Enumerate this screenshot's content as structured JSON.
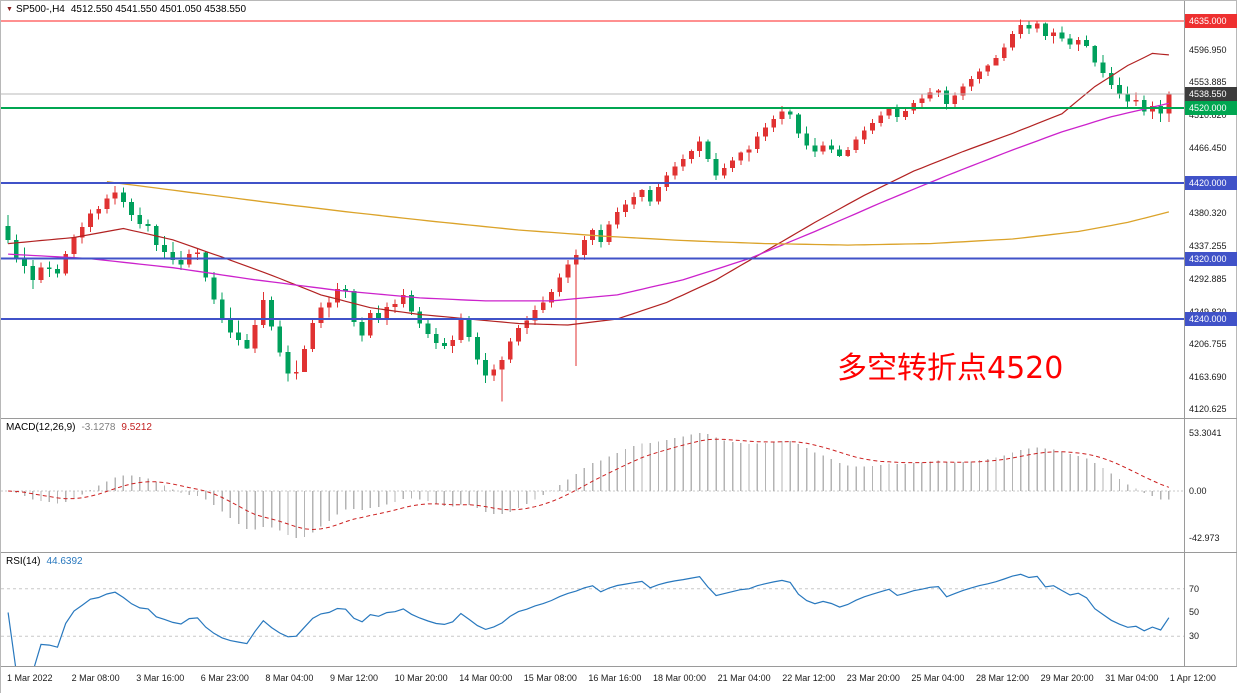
{
  "chart_data": {
    "type": "candlestick",
    "symbol": "SP500-,H4",
    "ohlc_text": "4512.550 4541.550 4501.050 4538.550",
    "ylim": [
      4108.8,
      4661.5
    ],
    "x_labels": [
      "1 Mar 2022",
      "2 Mar 08:00",
      "3 Mar 16:00",
      "6 Mar 23:00",
      "8 Mar 04:00",
      "9 Mar 12:00",
      "10 Mar 20:00",
      "14 Mar 00:00",
      "15 Mar 08:00",
      "16 Mar 16:00",
      "18 Mar 00:00",
      "21 Mar 04:00",
      "22 Mar 12:00",
      "23 Mar 20:00",
      "25 Mar 04:00",
      "28 Mar 12:00",
      "29 Mar 20:00",
      "31 Mar 04:00",
      "1 Apr 12:00"
    ],
    "colors": {
      "up": "#e03232",
      "down": "#00a05c",
      "hist": "#b4b4b4",
      "macd_signal": "#cc2020",
      "rsi": "#2878be"
    },
    "candles": [
      [
        4363,
        4378,
        4340,
        4345
      ],
      [
        4345,
        4352,
        4315,
        4320
      ],
      [
        4320,
        4335,
        4300,
        4310
      ],
      [
        4310,
        4318,
        4280,
        4292
      ],
      [
        4292,
        4315,
        4288,
        4308
      ],
      [
        4308,
        4316,
        4296,
        4306
      ],
      [
        4306,
        4312,
        4295,
        4300
      ],
      [
        4300,
        4330,
        4298,
        4326
      ],
      [
        4326,
        4352,
        4320,
        4348
      ],
      [
        4348,
        4368,
        4340,
        4362
      ],
      [
        4362,
        4385,
        4355,
        4380
      ],
      [
        4380,
        4390,
        4372,
        4386
      ],
      [
        4386,
        4405,
        4380,
        4400
      ],
      [
        4400,
        4416,
        4392,
        4408
      ],
      [
        4408,
        4414,
        4388,
        4395
      ],
      [
        4395,
        4400,
        4370,
        4378
      ],
      [
        4378,
        4388,
        4360,
        4366
      ],
      [
        4366,
        4372,
        4356,
        4363
      ],
      [
        4363,
        4365,
        4330,
        4338
      ],
      [
        4338,
        4350,
        4320,
        4329
      ],
      [
        4329,
        4342,
        4312,
        4318
      ],
      [
        4318,
        4330,
        4305,
        4312
      ],
      [
        4312,
        4332,
        4308,
        4326
      ],
      [
        4326,
        4334,
        4318,
        4328
      ],
      [
        4328,
        4330,
        4290,
        4295
      ],
      [
        4295,
        4302,
        4260,
        4266
      ],
      [
        4266,
        4275,
        4235,
        4240
      ],
      [
        4240,
        4255,
        4215,
        4222
      ],
      [
        4222,
        4238,
        4205,
        4212
      ],
      [
        4212,
        4220,
        4200,
        4201
      ],
      [
        4201,
        4240,
        4195,
        4232
      ],
      [
        4232,
        4276,
        4228,
        4265
      ],
      [
        4265,
        4270,
        4225,
        4230
      ],
      [
        4230,
        4238,
        4190,
        4196
      ],
      [
        4196,
        4205,
        4157,
        4168
      ],
      [
        4168,
        4185,
        4160,
        4170
      ],
      [
        4170,
        4205,
        4170,
        4200
      ],
      [
        4200,
        4240,
        4196,
        4235
      ],
      [
        4235,
        4262,
        4228,
        4255
      ],
      [
        4255,
        4270,
        4242,
        4262
      ],
      [
        4262,
        4288,
        4255,
        4280
      ],
      [
        4280,
        4285,
        4268,
        4277
      ],
      [
        4277,
        4280,
        4230,
        4236
      ],
      [
        4236,
        4242,
        4210,
        4218
      ],
      [
        4218,
        4252,
        4215,
        4248
      ],
      [
        4248,
        4258,
        4235,
        4240
      ],
      [
        4240,
        4262,
        4232,
        4256
      ],
      [
        4256,
        4266,
        4248,
        4260
      ],
      [
        4260,
        4280,
        4255,
        4272
      ],
      [
        4272,
        4278,
        4245,
        4250
      ],
      [
        4250,
        4256,
        4228,
        4234
      ],
      [
        4234,
        4240,
        4215,
        4220
      ],
      [
        4220,
        4228,
        4200,
        4208
      ],
      [
        4208,
        4215,
        4200,
        4204
      ],
      [
        4204,
        4218,
        4195,
        4212
      ],
      [
        4212,
        4247,
        4208,
        4240
      ],
      [
        4240,
        4244,
        4210,
        4216
      ],
      [
        4216,
        4222,
        4180,
        4186
      ],
      [
        4186,
        4195,
        4155,
        4165
      ],
      [
        4165,
        4180,
        4158,
        4173
      ],
      [
        4173,
        4190,
        4131,
        4186
      ],
      [
        4186,
        4215,
        4182,
        4210
      ],
      [
        4210,
        4232,
        4205,
        4228
      ],
      [
        4228,
        4244,
        4220,
        4238
      ],
      [
        4238,
        4258,
        4232,
        4252
      ],
      [
        4252,
        4270,
        4248,
        4262
      ],
      [
        4262,
        4280,
        4255,
        4276
      ],
      [
        4276,
        4300,
        4270,
        4295
      ],
      [
        4295,
        4318,
        4288,
        4312
      ],
      [
        4312,
        4332,
        4178,
        4325
      ],
      [
        4325,
        4350,
        4318,
        4345
      ],
      [
        4345,
        4360,
        4338,
        4358
      ],
      [
        4358,
        4365,
        4335,
        4342
      ],
      [
        4342,
        4370,
        4338,
        4365
      ],
      [
        4365,
        4388,
        4360,
        4382
      ],
      [
        4382,
        4398,
        4375,
        4392
      ],
      [
        4392,
        4408,
        4386,
        4402
      ],
      [
        4402,
        4412,
        4396,
        4411
      ],
      [
        4411,
        4416,
        4390,
        4396
      ],
      [
        4396,
        4420,
        4392,
        4415
      ],
      [
        4415,
        4435,
        4410,
        4430
      ],
      [
        4430,
        4448,
        4425,
        4442
      ],
      [
        4442,
        4458,
        4436,
        4452
      ],
      [
        4452,
        4465,
        4446,
        4463
      ],
      [
        4463,
        4482,
        4455,
        4475
      ],
      [
        4475,
        4478,
        4448,
        4452
      ],
      [
        4452,
        4460,
        4424,
        4430
      ],
      [
        4430,
        4446,
        4426,
        4440
      ],
      [
        4440,
        4455,
        4435,
        4450
      ],
      [
        4450,
        4462,
        4444,
        4461
      ],
      [
        4461,
        4470,
        4449,
        4465
      ],
      [
        4465,
        4488,
        4460,
        4482
      ],
      [
        4482,
        4500,
        4476,
        4494
      ],
      [
        4494,
        4510,
        4488,
        4505
      ],
      [
        4505,
        4522,
        4498,
        4515
      ],
      [
        4515,
        4518,
        4505,
        4511
      ],
      [
        4511,
        4513,
        4480,
        4486
      ],
      [
        4486,
        4495,
        4465,
        4470
      ],
      [
        4470,
        4480,
        4455,
        4462
      ],
      [
        4462,
        4475,
        4458,
        4470
      ],
      [
        4470,
        4478,
        4460,
        4465
      ],
      [
        4465,
        4470,
        4455,
        4456
      ],
      [
        4456,
        4468,
        4455,
        4464
      ],
      [
        4464,
        4482,
        4460,
        4478
      ],
      [
        4478,
        4495,
        4472,
        4490
      ],
      [
        4490,
        4505,
        4485,
        4500
      ],
      [
        4500,
        4515,
        4495,
        4510
      ],
      [
        4510,
        4520,
        4505,
        4520
      ],
      [
        4520,
        4524,
        4501,
        4508
      ],
      [
        4508,
        4520,
        4504,
        4516
      ],
      [
        4516,
        4530,
        4512,
        4526
      ],
      [
        4526,
        4538,
        4520,
        4532
      ],
      [
        4532,
        4546,
        4528,
        4540
      ],
      [
        4540,
        4545,
        4534,
        4543
      ],
      [
        4543,
        4548,
        4518,
        4525
      ],
      [
        4525,
        4540,
        4520,
        4536
      ],
      [
        4536,
        4552,
        4530,
        4548
      ],
      [
        4548,
        4562,
        4542,
        4558
      ],
      [
        4558,
        4572,
        4552,
        4568
      ],
      [
        4568,
        4578,
        4562,
        4576
      ],
      [
        4576,
        4590,
        4576,
        4586
      ],
      [
        4586,
        4605,
        4582,
        4600
      ],
      [
        4600,
        4622,
        4596,
        4618
      ],
      [
        4618,
        4637,
        4612,
        4630
      ],
      [
        4630,
        4635,
        4618,
        4625
      ],
      [
        4625,
        4634,
        4620,
        4632
      ],
      [
        4632,
        4633,
        4610,
        4615
      ],
      [
        4615,
        4625,
        4605,
        4620
      ],
      [
        4620,
        4628,
        4608,
        4612
      ],
      [
        4612,
        4618,
        4598,
        4604
      ],
      [
        4604,
        4614,
        4595,
        4610
      ],
      [
        4610,
        4616,
        4600,
        4602
      ],
      [
        4602,
        4603,
        4575,
        4580
      ],
      [
        4580,
        4590,
        4560,
        4566
      ],
      [
        4566,
        4574,
        4545,
        4550
      ],
      [
        4550,
        4560,
        4532,
        4538
      ],
      [
        4538,
        4548,
        4520,
        4528
      ],
      [
        4528,
        4540,
        4522,
        4530
      ],
      [
        4530,
        4536,
        4510,
        4515
      ],
      [
        4515,
        4528,
        4505,
        4522
      ],
      [
        4522,
        4530,
        4501,
        4512.55
      ],
      [
        4512.55,
        4541.55,
        4501.05,
        4538.55
      ]
    ],
    "ma_lines": [
      {
        "name": "ma-fast-crimson",
        "color": "#b22222",
        "width": 1.2,
        "points": [
          [
            0,
            4340
          ],
          [
            8,
            4348
          ],
          [
            14,
            4360
          ],
          [
            20,
            4345
          ],
          [
            26,
            4322
          ],
          [
            32,
            4298
          ],
          [
            38,
            4272
          ],
          [
            44,
            4255
          ],
          [
            50,
            4246
          ],
          [
            56,
            4240
          ],
          [
            62,
            4234
          ],
          [
            68,
            4232
          ],
          [
            74,
            4240
          ],
          [
            80,
            4262
          ],
          [
            86,
            4292
          ],
          [
            92,
            4330
          ],
          [
            98,
            4368
          ],
          [
            104,
            4404
          ],
          [
            110,
            4436
          ],
          [
            116,
            4462
          ],
          [
            122,
            4486
          ],
          [
            128,
            4512
          ],
          [
            132,
            4548
          ],
          [
            136,
            4576
          ],
          [
            139,
            4592
          ],
          [
            141,
            4590
          ]
        ]
      },
      {
        "name": "ma-medium-magenta",
        "color": "#cc22cc",
        "width": 1.3,
        "points": [
          [
            0,
            4326
          ],
          [
            10,
            4320
          ],
          [
            20,
            4308
          ],
          [
            30,
            4292
          ],
          [
            40,
            4278
          ],
          [
            50,
            4268
          ],
          [
            58,
            4264
          ],
          [
            66,
            4264
          ],
          [
            74,
            4272
          ],
          [
            82,
            4292
          ],
          [
            90,
            4320
          ],
          [
            98,
            4356
          ],
          [
            106,
            4394
          ],
          [
            114,
            4430
          ],
          [
            122,
            4464
          ],
          [
            128,
            4488
          ],
          [
            134,
            4508
          ],
          [
            141,
            4526
          ]
        ]
      },
      {
        "name": "ma-slow-orange",
        "color": "#dba32a",
        "width": 1.3,
        "points": [
          [
            12,
            4422
          ],
          [
            22,
            4408
          ],
          [
            32,
            4394
          ],
          [
            42,
            4381
          ],
          [
            52,
            4369
          ],
          [
            62,
            4358
          ],
          [
            72,
            4350
          ],
          [
            82,
            4344
          ],
          [
            92,
            4340
          ],
          [
            102,
            4338
          ],
          [
            112,
            4340
          ],
          [
            122,
            4346
          ],
          [
            130,
            4356
          ],
          [
            136,
            4368
          ],
          [
            141,
            4382
          ]
        ]
      }
    ],
    "levels": [
      {
        "name": "resistance-line-4635",
        "price": 4635.0,
        "color": "#ff2222",
        "width": 1.2
      },
      {
        "name": "current-price-line",
        "price": 4538.55,
        "color": "#b8b8b8",
        "width": 1
      },
      {
        "name": "pivot-line-4520",
        "price": 4520.0,
        "color": "#00a651",
        "width": 2
      },
      {
        "name": "support-line-4420",
        "price": 4420.0,
        "color": "#4052c8",
        "width": 2
      },
      {
        "name": "support-line-4320",
        "price": 4320.0,
        "color": "#4052c8",
        "width": 2
      },
      {
        "name": "support-line-4240",
        "price": 4240.0,
        "color": "#4052c8",
        "width": 2
      }
    ],
    "price_axis": {
      "plain": [
        {
          "text": "4596.950",
          "value": 4596.95
        },
        {
          "text": "4553.885",
          "value": 4553.885
        },
        {
          "text": "4510.820",
          "value": 4510.82
        },
        {
          "text": "4466.450",
          "value": 4466.45
        },
        {
          "text": "4380.320",
          "value": 4380.32
        },
        {
          "text": "4337.255",
          "value": 4337.255
        },
        {
          "text": "4292.885",
          "value": 4292.885
        },
        {
          "text": "4249.820",
          "value": 4249.82
        },
        {
          "text": "4206.755",
          "value": 4206.755
        },
        {
          "text": "4163.690",
          "value": 4163.69
        },
        {
          "text": "4120.625",
          "value": 4120.625
        }
      ],
      "badges": [
        {
          "text": "4635.000",
          "value": 4635.0,
          "bg": "#ee3030"
        },
        {
          "text": "4538.550",
          "value": 4538.55,
          "bg": "#3c3c3c"
        },
        {
          "text": "4520.000",
          "value": 4520.0,
          "bg": "#00a651"
        },
        {
          "text": "4420.000",
          "value": 4420.0,
          "bg": "#4052c8"
        },
        {
          "text": "4320.000",
          "value": 4320.0,
          "bg": "#4052c8"
        },
        {
          "text": "4240.000",
          "value": 4240.0,
          "bg": "#4052c8"
        }
      ]
    },
    "macd": {
      "label": "MACD(12,26,9)",
      "main_text": "-3.1278",
      "signal_text": "9.5212",
      "ylim": [
        -56,
        66
      ],
      "axis": [
        {
          "text": "53.3041",
          "value": 53.3041
        },
        {
          "text": "0.00",
          "value": 0
        },
        {
          "text": "-42.973",
          "value": -42.973
        }
      ]
    },
    "rsi": {
      "label": "RSI(14)",
      "value_text": "44.6392",
      "ylim": [
        5,
        100
      ],
      "axis": [
        {
          "text": "70",
          "value": 70
        },
        {
          "text": "50",
          "value": 50
        },
        {
          "text": "30",
          "value": 30
        }
      ],
      "level_lines": [
        70,
        30
      ]
    },
    "annotation": {
      "text": "多空转折点4520",
      "color": "#ff0000",
      "x": 836,
      "y": 342,
      "font_size": 30
    }
  }
}
